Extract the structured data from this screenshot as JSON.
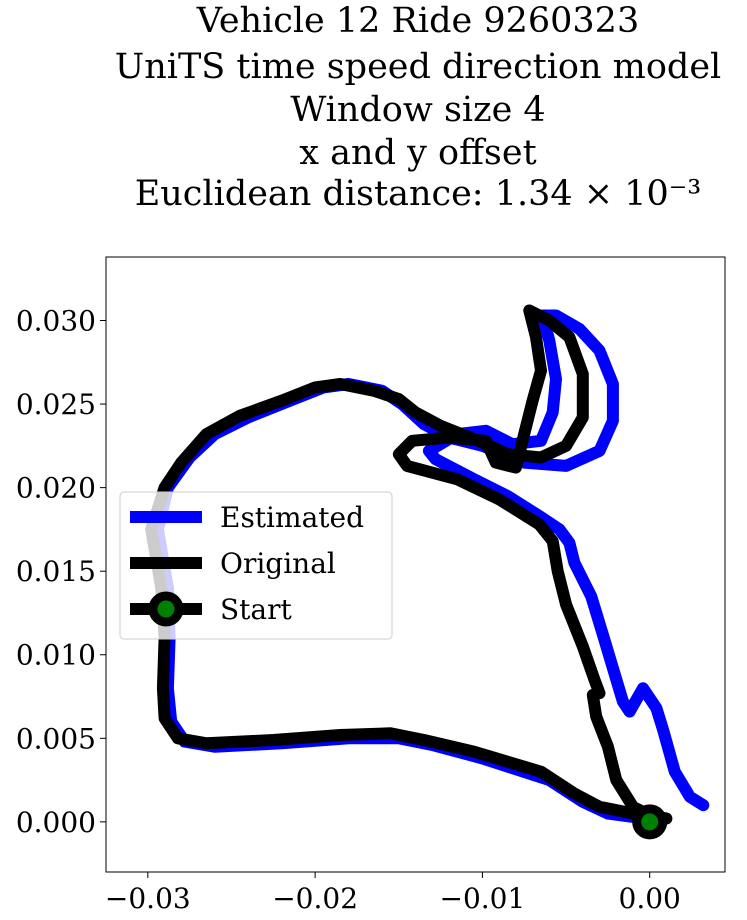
{
  "chart_data": {
    "type": "line",
    "title_lines": [
      "Vehicle 12 Ride 9260323",
      "UniTS time speed direction model",
      "Window size 4",
      "x and y offset",
      "Euclidean distance: 1.34 × 10⁻³"
    ],
    "xlabel": "",
    "ylabel": "",
    "xlim": [
      -0.0325,
      0.0045
    ],
    "ylim": [
      -0.003,
      0.0338
    ],
    "xticks": [
      -0.03,
      -0.02,
      -0.01,
      0.0
    ],
    "xtick_labels": [
      "−0.03",
      "−0.02",
      "−0.01",
      "0.00"
    ],
    "yticks": [
      0.0,
      0.005,
      0.01,
      0.015,
      0.02,
      0.025,
      0.03
    ],
    "ytick_labels": [
      "0.000",
      "0.005",
      "0.010",
      "0.015",
      "0.020",
      "0.025",
      "0.030"
    ],
    "grid": false,
    "legend_position": "center-left",
    "series": [
      {
        "name": "Estimated",
        "color": "#0000ff",
        "points": [
          [
            0.0032,
            0.001
          ],
          [
            0.0024,
            0.0015
          ],
          [
            0.0015,
            0.003
          ],
          [
            0.0008,
            0.0055
          ],
          [
            0.0004,
            0.0068
          ],
          [
            -0.0004,
            0.008
          ],
          [
            -0.0012,
            0.0066
          ],
          [
            -0.0016,
            0.0072
          ],
          [
            -0.0022,
            0.0092
          ],
          [
            -0.0028,
            0.0112
          ],
          [
            -0.0035,
            0.0135
          ],
          [
            -0.0045,
            0.0155
          ],
          [
            -0.0048,
            0.0167
          ],
          [
            -0.0054,
            0.0175
          ],
          [
            -0.0066,
            0.0183
          ],
          [
            -0.0085,
            0.0195
          ],
          [
            -0.0105,
            0.0205
          ],
          [
            -0.0128,
            0.0217
          ],
          [
            -0.0132,
            0.0222
          ],
          [
            -0.0115,
            0.0232
          ],
          [
            -0.0098,
            0.0234
          ],
          [
            -0.0082,
            0.0226
          ],
          [
            -0.0065,
            0.0228
          ],
          [
            -0.0058,
            0.0245
          ],
          [
            -0.0056,
            0.0265
          ],
          [
            -0.006,
            0.0288
          ],
          [
            -0.0064,
            0.0303
          ],
          [
            -0.0056,
            0.0303
          ],
          [
            -0.0042,
            0.0295
          ],
          [
            -0.003,
            0.0282
          ],
          [
            -0.0022,
            0.0262
          ],
          [
            -0.0022,
            0.024
          ],
          [
            -0.003,
            0.0222
          ],
          [
            -0.005,
            0.0213
          ],
          [
            -0.0075,
            0.0215
          ],
          [
            -0.01,
            0.0225
          ],
          [
            -0.012,
            0.023
          ],
          [
            -0.0135,
            0.0238
          ],
          [
            -0.0148,
            0.025
          ],
          [
            -0.016,
            0.0258
          ],
          [
            -0.018,
            0.0262
          ],
          [
            -0.0195,
            0.026
          ],
          [
            -0.0215,
            0.0252
          ],
          [
            -0.024,
            0.0242
          ],
          [
            -0.026,
            0.0232
          ],
          [
            -0.0275,
            0.0218
          ],
          [
            -0.0288,
            0.02
          ],
          [
            -0.0294,
            0.0175
          ],
          [
            -0.0288,
            0.014
          ],
          [
            -0.0287,
            0.011
          ],
          [
            -0.0288,
            0.008
          ],
          [
            -0.0286,
            0.006
          ],
          [
            -0.0278,
            0.0048
          ],
          [
            -0.026,
            0.0045
          ],
          [
            -0.022,
            0.0047
          ],
          [
            -0.018,
            0.005
          ],
          [
            -0.015,
            0.005
          ],
          [
            -0.013,
            0.0046
          ],
          [
            -0.01,
            0.0038
          ],
          [
            -0.006,
            0.0025
          ],
          [
            -0.004,
            0.0012
          ],
          [
            -0.0025,
            0.0005
          ],
          [
            -0.001,
            0.0003
          ],
          [
            0.0,
            0.0
          ]
        ]
      },
      {
        "name": "Original",
        "color": "#000000",
        "points": [
          [
            0.001,
            0.0002
          ],
          [
            0.0,
            0.0004
          ],
          [
            -0.001,
            0.0009
          ],
          [
            -0.002,
            0.0025
          ],
          [
            -0.0025,
            0.0045
          ],
          [
            -0.0032,
            0.0063
          ],
          [
            -0.0034,
            0.0076
          ],
          [
            -0.003,
            0.0077
          ],
          [
            -0.0033,
            0.0085
          ],
          [
            -0.004,
            0.0105
          ],
          [
            -0.005,
            0.013
          ],
          [
            -0.0055,
            0.015
          ],
          [
            -0.0058,
            0.0168
          ],
          [
            -0.0066,
            0.0178
          ],
          [
            -0.009,
            0.0193
          ],
          [
            -0.0115,
            0.0205
          ],
          [
            -0.0145,
            0.0213
          ],
          [
            -0.015,
            0.022
          ],
          [
            -0.0142,
            0.0228
          ],
          [
            -0.012,
            0.023
          ],
          [
            -0.0098,
            0.0228
          ],
          [
            -0.0092,
            0.0215
          ],
          [
            -0.008,
            0.0212
          ],
          [
            -0.0075,
            0.0232
          ],
          [
            -0.007,
            0.0252
          ],
          [
            -0.0065,
            0.027
          ],
          [
            -0.0068,
            0.029
          ],
          [
            -0.0072,
            0.0306
          ],
          [
            -0.006,
            0.03
          ],
          [
            -0.0048,
            0.029
          ],
          [
            -0.004,
            0.0268
          ],
          [
            -0.004,
            0.0242
          ],
          [
            -0.005,
            0.0225
          ],
          [
            -0.0065,
            0.0218
          ],
          [
            -0.0085,
            0.022
          ],
          [
            -0.01,
            0.0227
          ],
          [
            -0.0125,
            0.0237
          ],
          [
            -0.014,
            0.0245
          ],
          [
            -0.015,
            0.0253
          ],
          [
            -0.0165,
            0.0258
          ],
          [
            -0.0185,
            0.0262
          ],
          [
            -0.02,
            0.026
          ],
          [
            -0.022,
            0.0252
          ],
          [
            -0.0245,
            0.0243
          ],
          [
            -0.0265,
            0.0232
          ],
          [
            -0.028,
            0.0215
          ],
          [
            -0.029,
            0.02
          ],
          [
            -0.0298,
            0.0175
          ],
          [
            -0.0292,
            0.014
          ],
          [
            -0.029,
            0.011
          ],
          [
            -0.0291,
            0.008
          ],
          [
            -0.029,
            0.0062
          ],
          [
            -0.0282,
            0.005
          ],
          [
            -0.0265,
            0.0047
          ],
          [
            -0.0225,
            0.0049
          ],
          [
            -0.0185,
            0.0052
          ],
          [
            -0.0155,
            0.0053
          ],
          [
            -0.0135,
            0.0049
          ],
          [
            -0.0105,
            0.0042
          ],
          [
            -0.0065,
            0.003
          ],
          [
            -0.0045,
            0.0017
          ],
          [
            -0.003,
            0.0009
          ],
          [
            -0.001,
            0.0005
          ],
          [
            0.0,
            0.0
          ]
        ]
      }
    ],
    "start_point": {
      "name": "Start",
      "x": 0.0,
      "y": 0.0,
      "marker_face": "#008000",
      "marker_edge": "#000000"
    }
  }
}
